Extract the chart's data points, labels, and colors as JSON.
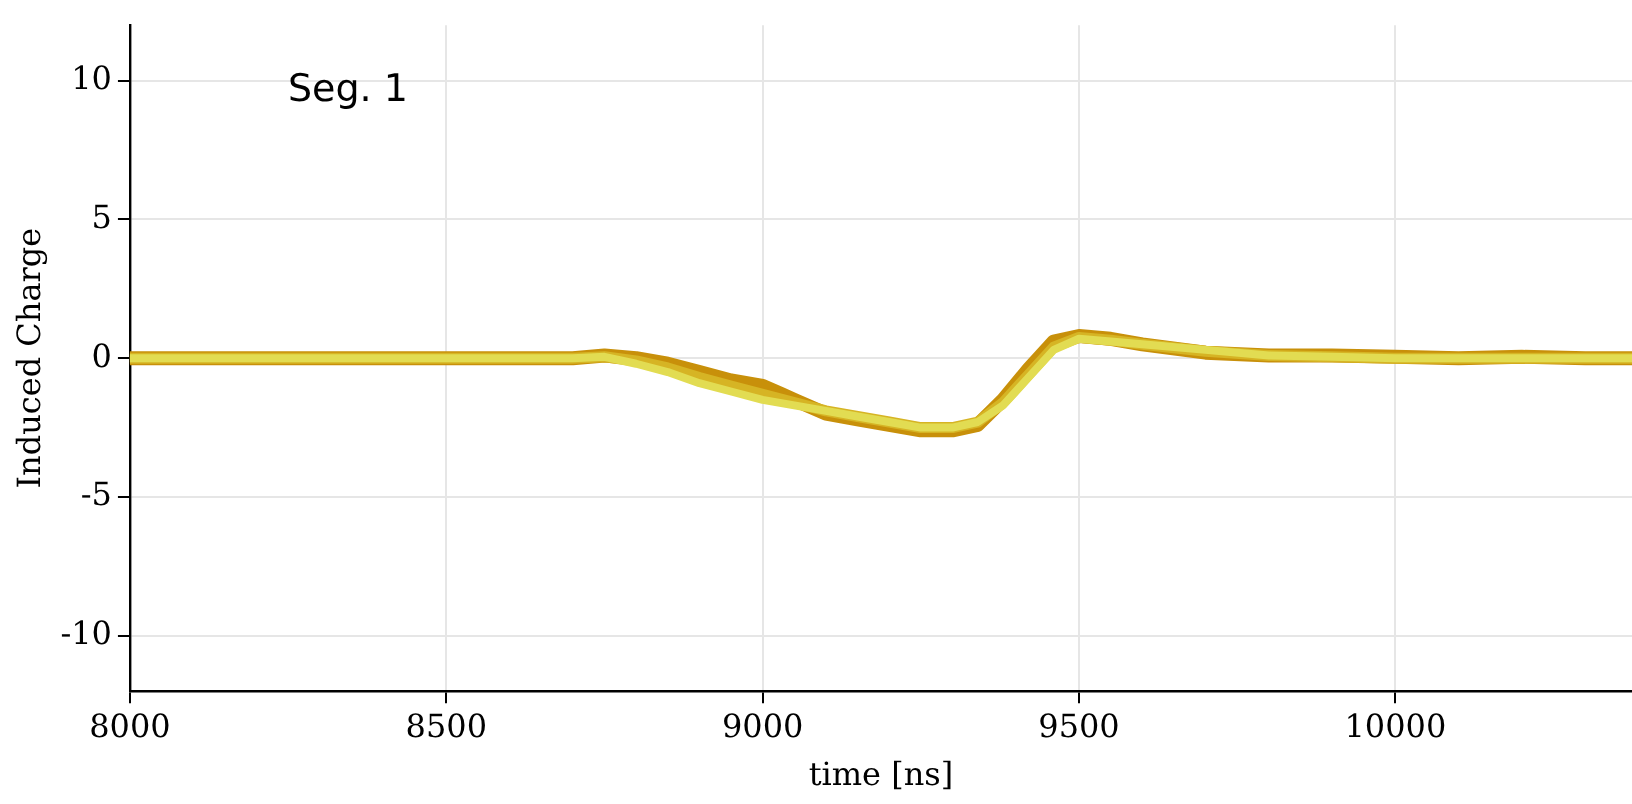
{
  "chart_data": {
    "type": "line",
    "xlabel": "time [ns]",
    "ylabel": "Induced Charge",
    "annotations": [
      "Seg. 1"
    ],
    "xlim": [
      8000,
      10374
    ],
    "xticks": [
      8000,
      8500,
      9000,
      9500,
      10000
    ],
    "ylim": [
      -12,
      12
    ],
    "yticks": [
      -10,
      -5,
      0,
      5,
      10
    ],
    "grid": true,
    "legend": false,
    "marker": "none",
    "line_style": "solid",
    "series": [
      {
        "color": "#c8900a",
        "x": [
          8000,
          8100,
          8200,
          8300,
          8400,
          8500,
          8600,
          8700,
          8750,
          8800,
          8850,
          8900,
          8950,
          9000,
          9030,
          9050,
          9100,
          9150,
          9200,
          9250,
          9300,
          9340,
          9380,
          9420,
          9460,
          9500,
          9550,
          9600,
          9700,
          9800,
          9900,
          10000,
          10100,
          10200,
          10300,
          10374
        ],
        "values": [
          0,
          0,
          0,
          0,
          0,
          0,
          0,
          0,
          0.1,
          0,
          -0.2,
          -0.5,
          -0.8,
          -1.0,
          -1.3,
          -1.5,
          -2.0,
          -2.2,
          -2.4,
          -2.6,
          -2.6,
          -2.4,
          -1.5,
          -0.4,
          0.6,
          0.8,
          0.7,
          0.5,
          0.2,
          0.1,
          0.1,
          0.05,
          0,
          0.05,
          0,
          0
        ]
      },
      {
        "color": "#d6b424",
        "x": [
          8000,
          8100,
          8200,
          8300,
          8400,
          8500,
          8600,
          8700,
          8750,
          8800,
          8850,
          8900,
          8950,
          9000,
          9050,
          9100,
          9150,
          9200,
          9250,
          9300,
          9340,
          9380,
          9420,
          9460,
          9500,
          9550,
          9600,
          9700,
          9800,
          9900,
          10000,
          10100,
          10200,
          10300,
          10374
        ],
        "values": [
          0,
          0,
          0,
          0,
          0,
          0,
          0,
          0,
          0.05,
          -0.1,
          -0.35,
          -0.7,
          -1.0,
          -1.3,
          -1.6,
          -1.9,
          -2.1,
          -2.3,
          -2.5,
          -2.5,
          -2.3,
          -1.6,
          -0.6,
          0.4,
          0.75,
          0.65,
          0.5,
          0.25,
          0.1,
          0.05,
          0,
          0,
          0,
          0,
          0
        ]
      },
      {
        "color": "#e2dc52",
        "x": [
          8000,
          8100,
          8200,
          8300,
          8400,
          8500,
          8600,
          8700,
          8750,
          8800,
          8850,
          8900,
          8950,
          9000,
          9050,
          9100,
          9150,
          9200,
          9250,
          9300,
          9340,
          9380,
          9420,
          9460,
          9500,
          9550,
          9600,
          9700,
          9800,
          9900,
          10000,
          10100,
          10200,
          10300,
          10374
        ],
        "values": [
          0,
          0,
          0,
          0,
          0,
          0,
          0,
          0,
          0.05,
          -0.2,
          -0.5,
          -0.9,
          -1.2,
          -1.5,
          -1.7,
          -1.9,
          -2.1,
          -2.3,
          -2.5,
          -2.5,
          -2.3,
          -1.7,
          -0.7,
          0.3,
          0.7,
          0.6,
          0.5,
          0.3,
          0.1,
          0.05,
          0,
          0,
          0,
          0,
          0
        ]
      }
    ]
  }
}
